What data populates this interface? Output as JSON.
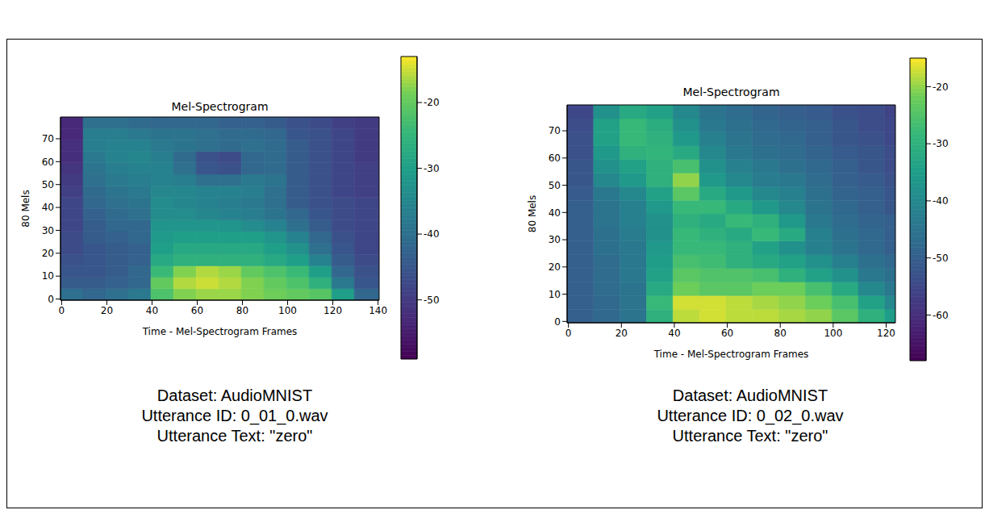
{
  "chart_data": [
    {
      "type": "heatmap",
      "title": "Mel-Spectrogram",
      "x_label": "Time - Mel-Spectrogram Frames",
      "y_label": "80 Mels",
      "xlim": [
        -0.5,
        140.5
      ],
      "ylim": [
        -0.5,
        79.5
      ],
      "xticks": [
        0,
        20,
        40,
        60,
        80,
        100,
        120,
        140
      ],
      "yticks": [
        0,
        10,
        20,
        30,
        40,
        50,
        60,
        70
      ],
      "x_bins": [
        -0.5,
        9.5,
        19.5,
        29.5,
        39.5,
        49.5,
        59.5,
        69.5,
        79.5,
        89.5,
        99.5,
        109.5,
        119.5,
        129.5,
        140.5
      ],
      "y_bins": [
        -0.5,
        4.5,
        9.5,
        14.5,
        19.5,
        24.5,
        29.5,
        34.5,
        39.5,
        44.5,
        49.5,
        54.5,
        59.5,
        64.5,
        69.5,
        74.5,
        79.5
      ],
      "cells": [
        [
          -40,
          -42,
          -40,
          -38,
          -22,
          -18,
          -17,
          -17,
          -18,
          -19,
          -20,
          -21,
          -30,
          -42
        ],
        [
          -44,
          -44,
          -43,
          -42,
          -20,
          -16,
          -15,
          -16,
          -18,
          -20,
          -22,
          -26,
          -38,
          -45
        ],
        [
          -45,
          -45,
          -44,
          -42,
          -24,
          -18,
          -16,
          -17,
          -20,
          -22,
          -24,
          -30,
          -42,
          -46
        ],
        [
          -46,
          -45,
          -44,
          -43,
          -28,
          -26,
          -26,
          -26,
          -26,
          -28,
          -30,
          -36,
          -44,
          -47
        ],
        [
          -47,
          -45,
          -44,
          -43,
          -30,
          -28,
          -28,
          -28,
          -28,
          -30,
          -33,
          -40,
          -45,
          -48
        ],
        [
          -47,
          -44,
          -43,
          -42,
          -31,
          -30,
          -30,
          -30,
          -30,
          -32,
          -36,
          -42,
          -46,
          -48
        ],
        [
          -48,
          -44,
          -42,
          -42,
          -32,
          -32,
          -32,
          -32,
          -34,
          -36,
          -40,
          -44,
          -47,
          -48
        ],
        [
          -48,
          -43,
          -41,
          -40,
          -34,
          -34,
          -35,
          -36,
          -37,
          -39,
          -42,
          -45,
          -47,
          -48
        ],
        [
          -48,
          -42,
          -40,
          -39,
          -34,
          -35,
          -36,
          -37,
          -38,
          -40,
          -44,
          -46,
          -47,
          -48
        ],
        [
          -49,
          -41,
          -39,
          -38,
          -35,
          -35,
          -36,
          -36,
          -37,
          -40,
          -44,
          -46,
          -48,
          -49
        ],
        [
          -50,
          -40,
          -38,
          -37,
          -36,
          -37,
          -40,
          -40,
          -38,
          -39,
          -44,
          -46,
          -48,
          -49
        ],
        [
          -51,
          -39,
          -37,
          -36,
          -36,
          -40,
          -45,
          -46,
          -42,
          -41,
          -44,
          -46,
          -48,
          -49
        ],
        [
          -52,
          -38,
          -36,
          -35,
          -37,
          -41,
          -46,
          -47,
          -42,
          -41,
          -44,
          -46,
          -48,
          -50
        ],
        [
          -52,
          -37,
          -36,
          -36,
          -38,
          -39,
          -40,
          -41,
          -40,
          -41,
          -44,
          -46,
          -48,
          -50
        ],
        [
          -53,
          -37,
          -37,
          -38,
          -39,
          -39,
          -40,
          -41,
          -41,
          -42,
          -45,
          -46,
          -48,
          -50
        ],
        [
          -53,
          -40,
          -40,
          -41,
          -42,
          -42,
          -42,
          -43,
          -43,
          -44,
          -46,
          -47,
          -49,
          -50
        ]
      ],
      "color": "viridis",
      "colorbar": {
        "range": [
          -59,
          -13
        ],
        "ticks": [
          -50,
          -40,
          -30,
          -20
        ]
      },
      "annotations": [
        "Dataset: AudioMNIST",
        "Utterance ID: 0_01_0.wav",
        "Utterance Text: \"zero\""
      ]
    },
    {
      "type": "heatmap",
      "title": "Mel-Spectrogram",
      "x_label": "Time - Mel-Spectrogram Frames",
      "y_label": "80 Mels",
      "xlim": [
        -0.5,
        123.5
      ],
      "ylim": [
        -0.5,
        79.5
      ],
      "xticks": [
        0,
        20,
        40,
        60,
        80,
        100,
        120
      ],
      "yticks": [
        0,
        10,
        20,
        30,
        40,
        50,
        60,
        70
      ],
      "x_bins": [
        -0.5,
        9.5,
        19.5,
        29.5,
        39.5,
        49.5,
        59.5,
        69.5,
        79.5,
        89.5,
        99.5,
        109.5,
        119.5,
        123.5
      ],
      "y_bins": [
        -0.5,
        4.5,
        9.5,
        14.5,
        19.5,
        24.5,
        29.5,
        34.5,
        39.5,
        44.5,
        49.5,
        54.5,
        59.5,
        64.5,
        69.5,
        74.5,
        79.5
      ],
      "cells": [
        [
          -50,
          -48,
          -45,
          -30,
          -18,
          -17,
          -18,
          -18,
          -19,
          -20,
          -24,
          -30,
          -35
        ],
        [
          -50,
          -48,
          -45,
          -28,
          -17,
          -17,
          -18,
          -19,
          -20,
          -22,
          -26,
          -34,
          -40
        ],
        [
          -50,
          -47,
          -45,
          -32,
          -22,
          -24,
          -24,
          -22,
          -22,
          -26,
          -32,
          -40,
          -44
        ],
        [
          -50,
          -47,
          -44,
          -34,
          -24,
          -25,
          -25,
          -26,
          -30,
          -34,
          -38,
          -44,
          -46
        ],
        [
          -50,
          -47,
          -44,
          -35,
          -26,
          -27,
          -30,
          -32,
          -34,
          -38,
          -42,
          -46,
          -48
        ],
        [
          -50,
          -46,
          -44,
          -36,
          -28,
          -28,
          -30,
          -34,
          -38,
          -42,
          -45,
          -48,
          -50
        ],
        [
          -50,
          -46,
          -43,
          -38,
          -28,
          -30,
          -32,
          -28,
          -32,
          -42,
          -46,
          -48,
          -50
        ],
        [
          -50,
          -45,
          -42,
          -38,
          -30,
          -32,
          -28,
          -30,
          -36,
          -44,
          -47,
          -49,
          -50
        ],
        [
          -50,
          -45,
          -42,
          -36,
          -28,
          -28,
          -32,
          -36,
          -40,
          -45,
          -48,
          -50,
          -52
        ],
        [
          -51,
          -44,
          -40,
          -34,
          -24,
          -32,
          -36,
          -40,
          -42,
          -46,
          -49,
          -50,
          -52
        ],
        [
          -52,
          -40,
          -36,
          -30,
          -20,
          -36,
          -40,
          -43,
          -44,
          -47,
          -50,
          -51,
          -53
        ],
        [
          -52,
          -38,
          -34,
          -30,
          -26,
          -38,
          -42,
          -44,
          -46,
          -48,
          -50,
          -52,
          -54
        ],
        [
          -53,
          -36,
          -30,
          -29,
          -32,
          -40,
          -44,
          -46,
          -47,
          -49,
          -51,
          -52,
          -54
        ],
        [
          -53,
          -34,
          -28,
          -30,
          -36,
          -42,
          -45,
          -47,
          -48,
          -50,
          -52,
          -53,
          -55
        ],
        [
          -54,
          -34,
          -28,
          -31,
          -38,
          -44,
          -46,
          -48,
          -49,
          -50,
          -52,
          -54,
          -55
        ],
        [
          -55,
          -38,
          -32,
          -34,
          -40,
          -45,
          -47,
          -49,
          -50,
          -51,
          -53,
          -54,
          -56
        ]
      ],
      "color": "viridis",
      "colorbar": {
        "range": [
          -68,
          -15
        ],
        "ticks": [
          -60,
          -50,
          -40,
          -30,
          -20
        ]
      },
      "annotations": [
        "Dataset: AudioMNIST",
        "Utterance ID: 0_02_0.wav",
        "Utterance Text: \"zero\""
      ]
    }
  ]
}
